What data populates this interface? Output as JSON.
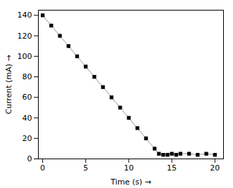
{
  "chart_data": {
    "type": "line",
    "x": [
      0,
      1,
      2,
      3,
      4,
      5,
      6,
      7,
      8,
      9,
      10,
      11,
      12,
      13,
      13.5,
      14,
      14.5,
      15,
      15.5,
      16,
      17,
      18,
      19,
      20
    ],
    "values": [
      140,
      130,
      120,
      110,
      100,
      90,
      80,
      70,
      60,
      50,
      40,
      30,
      20,
      10,
      5,
      4,
      4,
      5,
      4,
      5,
      5,
      4,
      5,
      4
    ],
    "xlim": [
      -0.5,
      21
    ],
    "ylim": [
      0,
      145
    ],
    "xticks": [
      0,
      5,
      10,
      15,
      20
    ],
    "yticks": [
      0,
      20,
      40,
      60,
      80,
      100,
      120,
      140
    ],
    "xlabel": "Time (s)",
    "ylabel": "Current (mA)",
    "color": "#999999",
    "marker": "square",
    "line_style": "solid"
  }
}
